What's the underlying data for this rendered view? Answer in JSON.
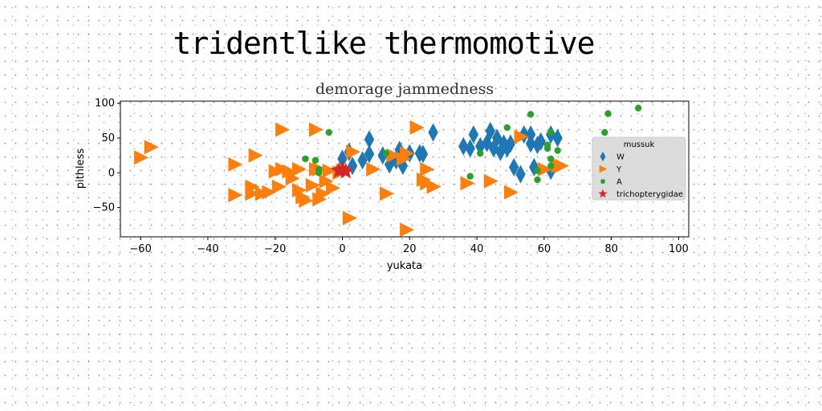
{
  "suptitle": "tridentlike thermomotive",
  "chart_data": {
    "type": "scatter",
    "title": "demorage jammedness",
    "xlabel": "yukata",
    "ylabel": "pithless",
    "xlim": [
      -66,
      103
    ],
    "ylim": [
      -92,
      103
    ],
    "xticks": [
      -60,
      -40,
      -20,
      0,
      20,
      40,
      60,
      80,
      100
    ],
    "yticks": [
      -50,
      0,
      50,
      100
    ],
    "xtick_labels": [
      "−60",
      "−40",
      "−20",
      "0",
      "20",
      "40",
      "60",
      "80",
      "100"
    ],
    "ytick_labels": [
      "−50",
      "0",
      "50",
      "100"
    ],
    "grid": false,
    "legend": {
      "title": "mussuk",
      "placement": "right"
    },
    "series": [
      {
        "name": "W",
        "marker": "diamond",
        "color": "#1f77b4",
        "points": [
          [
            0,
            20
          ],
          [
            2,
            30
          ],
          [
            3,
            10
          ],
          [
            6,
            18
          ],
          [
            8,
            27
          ],
          [
            8,
            48
          ],
          [
            12,
            25
          ],
          [
            14,
            12
          ],
          [
            16,
            18
          ],
          [
            18,
            10
          ],
          [
            17,
            33
          ],
          [
            20,
            28
          ],
          [
            23,
            28
          ],
          [
            24,
            27
          ],
          [
            27,
            58
          ],
          [
            36,
            38
          ],
          [
            38,
            35
          ],
          [
            39,
            55
          ],
          [
            41,
            38
          ],
          [
            43,
            43
          ],
          [
            44,
            60
          ],
          [
            45,
            35
          ],
          [
            46,
            50
          ],
          [
            47,
            30
          ],
          [
            48,
            42
          ],
          [
            49,
            35
          ],
          [
            50,
            42
          ],
          [
            51,
            8
          ],
          [
            53,
            -2
          ],
          [
            54,
            55
          ],
          [
            56,
            55
          ],
          [
            56,
            42
          ],
          [
            57,
            8
          ],
          [
            58,
            40
          ],
          [
            59,
            45
          ],
          [
            62,
            55
          ],
          [
            62,
            3
          ],
          [
            64,
            50
          ]
        ]
      },
      {
        "name": "Y",
        "marker": "triangle-right",
        "color": "#ff7f0e",
        "points": [
          [
            -60,
            22
          ],
          [
            -57,
            37
          ],
          [
            -32,
            12
          ],
          [
            -32,
            -32
          ],
          [
            -27,
            -20
          ],
          [
            -27,
            -30
          ],
          [
            -26,
            25
          ],
          [
            -24,
            -30
          ],
          [
            -22,
            -28
          ],
          [
            -20,
            2
          ],
          [
            -19,
            -20
          ],
          [
            -18,
            5
          ],
          [
            -18,
            62
          ],
          [
            -16,
            2
          ],
          [
            -15,
            -8
          ],
          [
            -13,
            -25
          ],
          [
            -13,
            5
          ],
          [
            -12,
            -35
          ],
          [
            -11,
            -40
          ],
          [
            -9,
            -18
          ],
          [
            -8,
            62
          ],
          [
            -8,
            5
          ],
          [
            -7,
            -38
          ],
          [
            -7,
            5
          ],
          [
            -6,
            -30
          ],
          [
            -5,
            -12
          ],
          [
            -4,
            3
          ],
          [
            -3,
            -22
          ],
          [
            -1,
            0
          ],
          [
            0,
            3
          ],
          [
            2,
            -65
          ],
          [
            3,
            30
          ],
          [
            9,
            5
          ],
          [
            13,
            -30
          ],
          [
            15,
            25
          ],
          [
            18,
            20
          ],
          [
            19,
            28
          ],
          [
            19,
            -82
          ],
          [
            22,
            65
          ],
          [
            24,
            -10
          ],
          [
            25,
            -15
          ],
          [
            25,
            5
          ],
          [
            27,
            -20
          ],
          [
            37,
            -15
          ],
          [
            44,
            -12
          ],
          [
            50,
            -28
          ],
          [
            53,
            52
          ],
          [
            60,
            5
          ],
          [
            64,
            10
          ],
          [
            65,
            10
          ]
        ]
      },
      {
        "name": "A",
        "marker": "circle",
        "color": "#2ca02c",
        "points": [
          [
            -11,
            20
          ],
          [
            -8,
            18
          ],
          [
            -7,
            0
          ],
          [
            -7,
            5
          ],
          [
            -4,
            58
          ],
          [
            13,
            28
          ],
          [
            38,
            -5
          ],
          [
            41,
            28
          ],
          [
            49,
            65
          ],
          [
            56,
            84
          ],
          [
            58,
            3
          ],
          [
            58,
            -10
          ],
          [
            61,
            40
          ],
          [
            61,
            35
          ],
          [
            62,
            58
          ],
          [
            62,
            10
          ],
          [
            62,
            20
          ],
          [
            64,
            32
          ],
          [
            78,
            58
          ],
          [
            79,
            85
          ],
          [
            88,
            93
          ]
        ]
      },
      {
        "name": "trichopterygidae",
        "marker": "star",
        "color": "#d62728",
        "points": [
          [
            -1,
            3
          ],
          [
            0,
            5
          ],
          [
            1,
            2
          ]
        ]
      }
    ]
  }
}
